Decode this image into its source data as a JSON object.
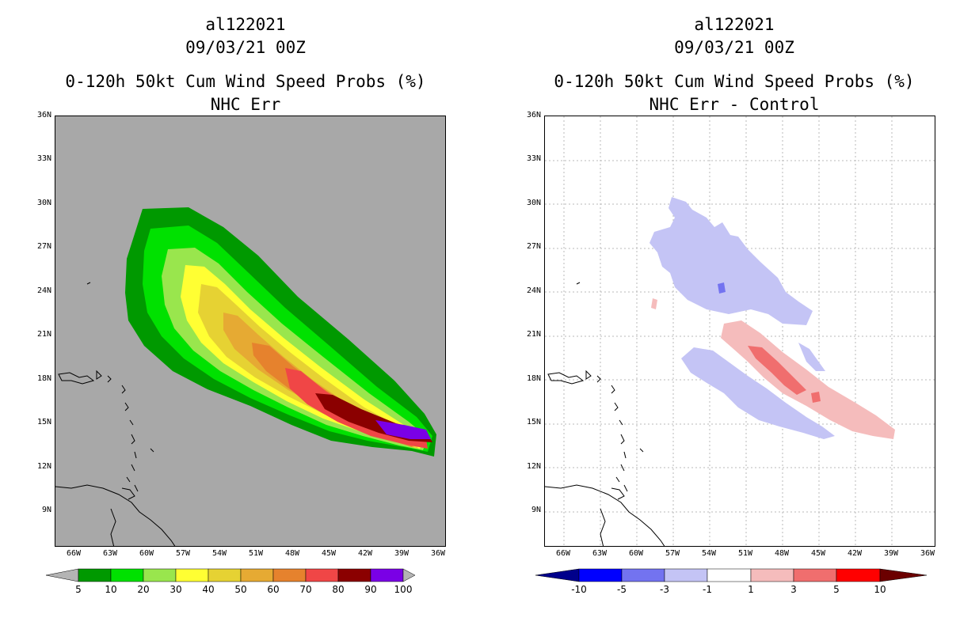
{
  "chart_data": [
    {
      "type": "heatmap",
      "storm_id": "al122021",
      "datetime": "09/03/21 00Z",
      "title": "0-120h 50kt Cum Wind Speed Probs (%)",
      "subtitle": "NHC Err",
      "background": "#a8a8a8",
      "lat_ticks": [
        "36N",
        "33N",
        "30N",
        "27N",
        "24N",
        "21N",
        "18N",
        "15N",
        "12N",
        "9N"
      ],
      "lon_ticks": [
        "66W",
        "63W",
        "60W",
        "57W",
        "54W",
        "51W",
        "48W",
        "45W",
        "42W",
        "39W",
        "36W"
      ],
      "lat_range": [
        7,
        36
      ],
      "lon_range": [
        -68,
        -35
      ],
      "grid": false,
      "colorbar": {
        "levels": [
          "5",
          "10",
          "20",
          "30",
          "40",
          "50",
          "60",
          "70",
          "80",
          "90",
          "100"
        ],
        "colors": [
          "#009900",
          "#00e100",
          "#99e64d",
          "#ffff33",
          "#e6d233",
          "#e6aa33",
          "#e6822d",
          "#f04646",
          "#8b0000",
          "#7a00e6"
        ],
        "under": "#b4b4b4",
        "over": "#b4b4b4"
      }
    },
    {
      "type": "heatmap",
      "storm_id": "al122021",
      "datetime": "09/03/21 00Z",
      "title": "0-120h 50kt Cum Wind Speed Probs (%)",
      "subtitle": "NHC Err - Control",
      "background": "#ffffff",
      "lat_ticks": [
        "36N",
        "33N",
        "30N",
        "27N",
        "24N",
        "21N",
        "18N",
        "15N",
        "12N",
        "9N"
      ],
      "lon_ticks": [
        "66W",
        "63W",
        "60W",
        "57W",
        "54W",
        "51W",
        "48W",
        "45W",
        "42W",
        "39W",
        "36W"
      ],
      "lat_range": [
        7,
        36
      ],
      "lon_range": [
        -68,
        -35
      ],
      "grid": true,
      "colorbar": {
        "levels": [
          "-10",
          "-5",
          "-3",
          "-1",
          "1",
          "3",
          "5",
          "10"
        ],
        "colors": [
          "#0000cc",
          "#0000ff",
          "#7373f0",
          "#c4c4f5",
          "#ffffff",
          "#f5bcbc",
          "#f06e6e",
          "#ff0000",
          "#990000"
        ],
        "under": "#00008b",
        "over": "#6b0000"
      }
    }
  ]
}
